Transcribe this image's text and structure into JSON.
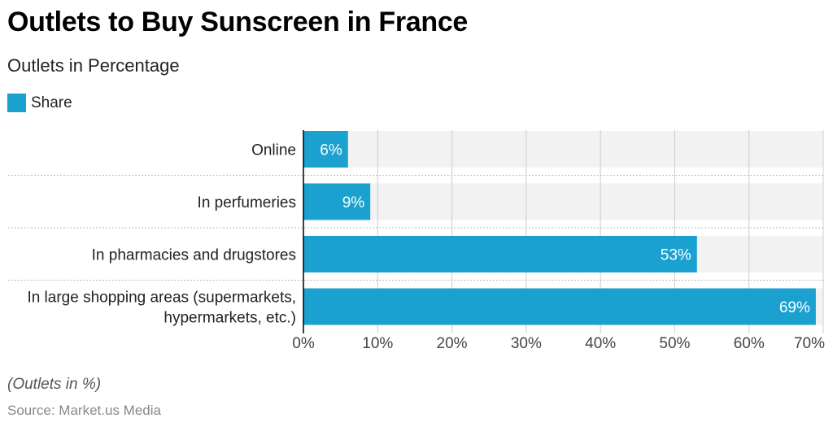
{
  "header": {
    "title": "Outlets to Buy Sunscreen in France",
    "subtitle": "Outlets in Percentage"
  },
  "footer": {
    "note": "(Outlets in %)",
    "source": "Source: Market.us Media"
  },
  "colors": {
    "bar": "#1aa1cf",
    "track": "#f2f2f2",
    "grid": "#cccccc",
    "text": "#222222"
  },
  "chart_data": {
    "type": "bar",
    "orientation": "horizontal",
    "categories": [
      [
        "Online"
      ],
      [
        "In perfumeries"
      ],
      [
        "In pharmacies and drugstores"
      ],
      [
        "In large shopping areas (supermarkets,",
        "hypermarkets, etc.)"
      ]
    ],
    "series": [
      {
        "name": "Share",
        "values": [
          6,
          9,
          53,
          69
        ],
        "labels": [
          "6%",
          "9%",
          "53%",
          "69%"
        ]
      }
    ],
    "xlim": [
      0,
      70
    ],
    "xticks": [
      0,
      10,
      20,
      30,
      40,
      50,
      60,
      70
    ],
    "xtick_labels": [
      "0%",
      "10%",
      "20%",
      "30%",
      "40%",
      "50%",
      "60%",
      "70%"
    ],
    "grid": true,
    "legend": "top-left"
  }
}
